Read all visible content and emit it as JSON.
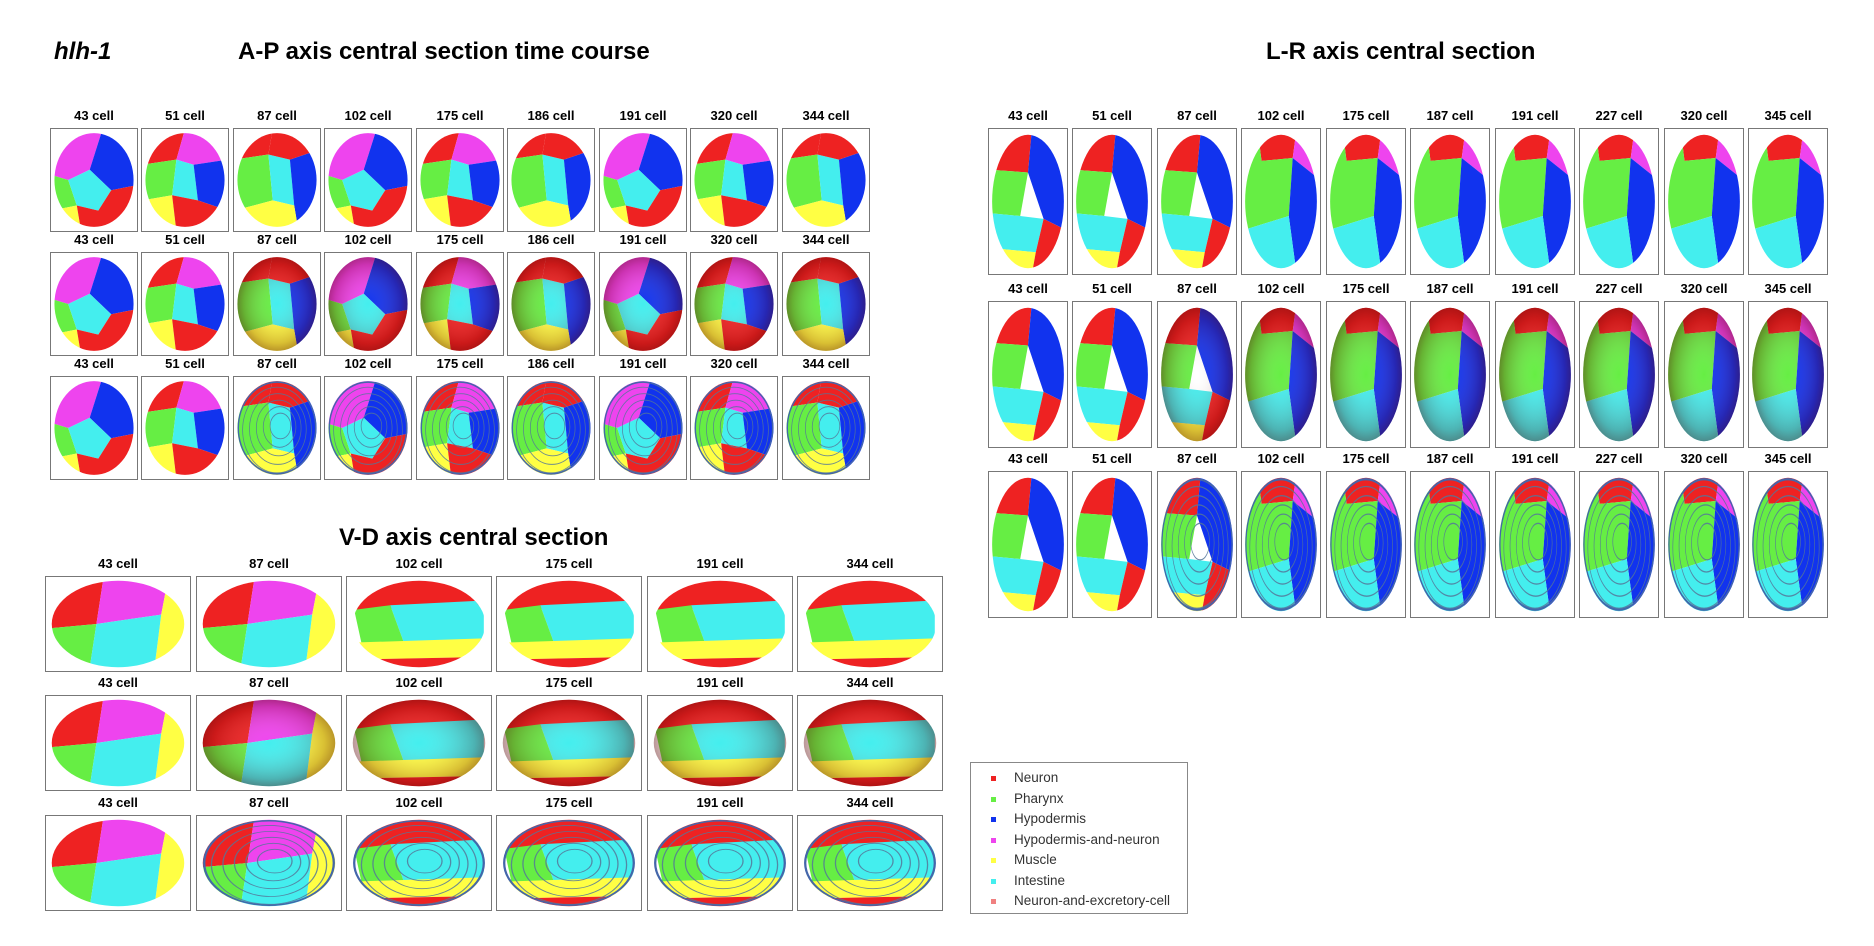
{
  "gene_name": "hlh-1",
  "ap": {
    "title": "A-P axis central section time course",
    "labels": [
      "43 cell",
      "51 cell",
      "87 cell",
      "102 cell",
      "175 cell",
      "186 cell",
      "191 cell",
      "320 cell",
      "344 cell"
    ]
  },
  "lr": {
    "title": "L-R axis central section",
    "labels": [
      "43 cell",
      "51 cell",
      "87 cell",
      "102 cell",
      "175 cell",
      "187 cell",
      "191 cell",
      "227 cell",
      "320 cell",
      "345 cell"
    ]
  },
  "vd": {
    "title": "V-D axis central section",
    "labels": [
      "43 cell",
      "87 cell",
      "102 cell",
      "175 cell",
      "191 cell",
      "344 cell"
    ]
  },
  "legend": [
    {
      "label": "Neuron",
      "color": "#ee2222"
    },
    {
      "label": "Pharynx",
      "color": "#66ee44"
    },
    {
      "label": "Hypodermis",
      "color": "#1133ee"
    },
    {
      "label": "Hypodermis-and-neuron",
      "color": "#ee44ee"
    },
    {
      "label": "Muscle",
      "color": "#ffff44"
    },
    {
      "label": "Intestine",
      "color": "#44eeee"
    },
    {
      "label": "Neuron-and-excretory-cell",
      "color": "#f08080"
    }
  ],
  "colors": {
    "neuron": "#ee2222",
    "pharynx": "#66ee44",
    "hypodermis": "#1133ee",
    "hypodermis_and_neuron": "#ee44ee",
    "muscle": "#ffff44",
    "intestine": "#44eeee",
    "neuron_and_excretory_cell": "#f08080",
    "unassigned": "#cccccc"
  }
}
